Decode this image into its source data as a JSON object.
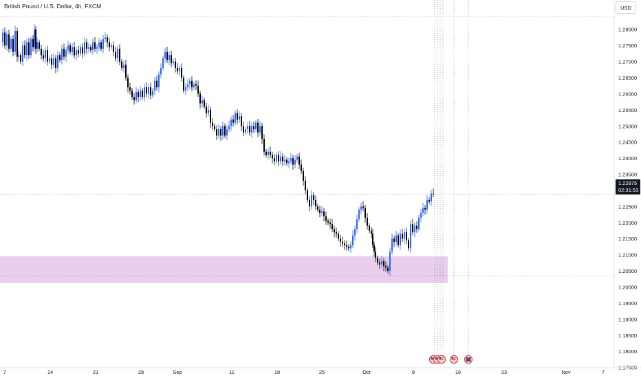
{
  "title": "British Pound / U.S. Dollar, 4h, FXCM",
  "currency": "USD",
  "last_price": {
    "value": "1.22875",
    "countdown": "02:31:53"
  },
  "chart_data": {
    "type": "candlestick",
    "y_axis": {
      "ylim": [
        1.173,
        1.284
      ],
      "ticks": [
        "1.28000",
        "1.27500",
        "1.27000",
        "1.26500",
        "1.26000",
        "1.25500",
        "1.25000",
        "1.24500",
        "1.24000",
        "1.23500",
        "1.23000",
        "1.22500",
        "1.22000",
        "1.21500",
        "1.21000",
        "1.20500",
        "1.20000",
        "1.19500",
        "1.19000",
        "1.18500",
        "1.18000",
        "1.17500"
      ],
      "side": "right"
    },
    "x_axis": {
      "ticks": [
        "7",
        "14",
        "21",
        "28",
        "Sep",
        "11",
        "18",
        "25",
        "Oct",
        "9",
        "16",
        "23",
        "Nov",
        "7"
      ]
    },
    "up_color": "#2962ff",
    "down_color": "#000000",
    "highlight_zone": {
      "from": 1.2012,
      "to": 1.2095,
      "color": "#e1bee7"
    },
    "horizontal_lines": [
      1.284,
      1.22875,
      1.2035
    ],
    "event_lines_count": 6,
    "event_icons": [
      "us-flag-icon",
      "us-flag-icon",
      "us-flag-icon",
      "us-flag-icon",
      "uk-flag-icon"
    ],
    "price_path": [
      [
        0,
        1.276
      ],
      [
        3,
        1.279
      ],
      [
        6,
        1.275
      ],
      [
        9,
        1.2785
      ],
      [
        12,
        1.274
      ],
      [
        15,
        1.277
      ],
      [
        18,
        1.273
      ],
      [
        21,
        1.2795
      ],
      [
        24,
        1.2715
      ],
      [
        26,
        1.272
      ],
      [
        29,
        1.27
      ],
      [
        32,
        1.275
      ],
      [
        35,
        1.272
      ],
      [
        38,
        1.276
      ],
      [
        41,
        1.272
      ],
      [
        44,
        1.277
      ],
      [
        47,
        1.2745
      ],
      [
        49,
        1.28
      ],
      [
        51,
        1.274
      ],
      [
        53,
        1.276
      ],
      [
        56,
        1.274
      ],
      [
        59,
        1.272
      ],
      [
        62,
        1.271
      ],
      [
        65,
        1.2735
      ],
      [
        68,
        1.27
      ],
      [
        71,
        1.271
      ],
      [
        74,
        1.269
      ],
      [
        77,
        1.271
      ],
      [
        80,
        1.268
      ],
      [
        83,
        1.272
      ],
      [
        86,
        1.2705
      ],
      [
        89,
        1.274
      ],
      [
        92,
        1.2715
      ],
      [
        95,
        1.2735
      ],
      [
        98,
        1.275
      ],
      [
        101,
        1.273
      ],
      [
        104,
        1.2745
      ],
      [
        107,
        1.272
      ],
      [
        110,
        1.2735
      ],
      [
        113,
        1.2725
      ],
      [
        116,
        1.2745
      ],
      [
        119,
        1.2725
      ],
      [
        122,
        1.276
      ],
      [
        125,
        1.274
      ],
      [
        128,
        1.2745
      ],
      [
        131,
        1.2735
      ],
      [
        134,
        1.276
      ],
      [
        137,
        1.274
      ],
      [
        140,
        1.2745
      ],
      [
        143,
        1.276
      ],
      [
        146,
        1.274
      ],
      [
        149,
        1.277
      ],
      [
        152,
        1.2775
      ],
      [
        155,
        1.276
      ],
      [
        158,
        1.2745
      ],
      [
        161,
        1.275
      ],
      [
        164,
        1.273
      ],
      [
        167,
        1.271
      ],
      [
        170,
        1.274
      ],
      [
        173,
        1.27
      ],
      [
        176,
        1.268
      ],
      [
        179,
        1.269
      ],
      [
        182,
        1.265
      ],
      [
        185,
        1.262
      ],
      [
        188,
        1.261
      ],
      [
        191,
        1.259
      ],
      [
        194,
        1.258
      ],
      [
        197,
        1.2605
      ],
      [
        200,
        1.259
      ],
      [
        203,
        1.261
      ],
      [
        206,
        1.259
      ],
      [
        209,
        1.262
      ],
      [
        212,
        1.26
      ],
      [
        215,
        1.262
      ],
      [
        218,
        1.2595
      ],
      [
        221,
        1.261
      ],
      [
        224,
        1.264
      ],
      [
        227,
        1.262
      ],
      [
        230,
        1.266
      ],
      [
        233,
        1.268
      ],
      [
        236,
        1.271
      ],
      [
        239,
        1.273
      ],
      [
        242,
        1.2705
      ],
      [
        245,
        1.272
      ],
      [
        248,
        1.2695
      ],
      [
        251,
        1.27
      ],
      [
        254,
        1.268
      ],
      [
        257,
        1.267
      ],
      [
        260,
        1.268
      ],
      [
        263,
        1.265
      ],
      [
        266,
        1.261
      ],
      [
        269,
        1.262
      ],
      [
        272,
        1.263
      ],
      [
        275,
        1.264
      ],
      [
        278,
        1.262
      ],
      [
        281,
        1.263
      ],
      [
        284,
        1.2625
      ],
      [
        287,
        1.26
      ],
      [
        290,
        1.257
      ],
      [
        293,
        1.258
      ],
      [
        296,
        1.256
      ],
      [
        299,
        1.254
      ],
      [
        302,
        1.255
      ],
      [
        305,
        1.251
      ],
      [
        308,
        1.25
      ],
      [
        311,
        1.249
      ],
      [
        314,
        1.247
      ],
      [
        317,
        1.249
      ],
      [
        320,
        1.247
      ],
      [
        323,
        1.25
      ],
      [
        326,
        1.247
      ],
      [
        329,
        1.249
      ],
      [
        332,
        1.25
      ],
      [
        335,
        1.252
      ],
      [
        338,
        1.251
      ],
      [
        341,
        1.254
      ],
      [
        344,
        1.252
      ],
      [
        347,
        1.253
      ],
      [
        350,
        1.25
      ],
      [
        353,
        1.248
      ],
      [
        356,
        1.249
      ],
      [
        359,
        1.25
      ],
      [
        362,
        1.248
      ],
      [
        365,
        1.25
      ],
      [
        368,
        1.249
      ],
      [
        371,
        1.251
      ],
      [
        374,
        1.248
      ],
      [
        377,
        1.25
      ],
      [
        380,
        1.246
      ],
      [
        383,
        1.242
      ],
      [
        386,
        1.241
      ],
      [
        389,
        1.242
      ],
      [
        392,
        1.241
      ],
      [
        395,
        1.24
      ],
      [
        398,
        1.239
      ],
      [
        401,
        1.241
      ],
      [
        404,
        1.239
      ],
      [
        407,
        1.2405
      ],
      [
        410,
        1.239
      ],
      [
        413,
        1.2395
      ],
      [
        416,
        1.2385
      ],
      [
        419,
        1.239
      ],
      [
        422,
        1.24
      ],
      [
        425,
        1.238
      ],
      [
        428,
        1.2395
      ],
      [
        431,
        1.2405
      ],
      [
        434,
        1.238
      ],
      [
        437,
        1.236
      ],
      [
        440,
        1.233
      ],
      [
        443,
        1.23
      ],
      [
        446,
        1.227
      ],
      [
        449,
        1.225
      ],
      [
        452,
        1.2285
      ],
      [
        455,
        1.227
      ],
      [
        458,
        1.225
      ],
      [
        461,
        1.224
      ],
      [
        464,
        1.223
      ],
      [
        467,
        1.2235
      ],
      [
        470,
        1.222
      ],
      [
        473,
        1.2205
      ],
      [
        476,
        1.22
      ],
      [
        479,
        1.2195
      ],
      [
        482,
        1.218
      ],
      [
        485,
        1.217
      ],
      [
        488,
        1.2165
      ],
      [
        491,
        1.215
      ],
      [
        494,
        1.214
      ],
      [
        497,
        1.2135
      ],
      [
        500,
        1.213
      ],
      [
        503,
        1.2125
      ],
      [
        506,
        1.212
      ],
      [
        509,
        1.213
      ],
      [
        512,
        1.216
      ],
      [
        515,
        1.218
      ],
      [
        518,
        1.221
      ],
      [
        521,
        1.224
      ],
      [
        524,
        1.225
      ],
      [
        527,
        1.2245
      ],
      [
        530,
        1.2215
      ],
      [
        533,
        1.219
      ],
      [
        536,
        1.2175
      ],
      [
        539,
        1.2165
      ],
      [
        541,
        1.213
      ],
      [
        543,
        1.211
      ],
      [
        545,
        1.209
      ],
      [
        548,
        1.2075
      ],
      [
        551,
        1.207
      ],
      [
        554,
        1.208
      ],
      [
        557,
        1.2065
      ],
      [
        560,
        1.206
      ],
      [
        563,
        1.205
      ],
      [
        566,
        1.211
      ],
      [
        569,
        1.215
      ],
      [
        572,
        1.214
      ],
      [
        575,
        1.216
      ],
      [
        578,
        1.213
      ],
      [
        581,
        1.2165
      ],
      [
        584,
        1.215
      ],
      [
        587,
        1.217
      ],
      [
        590,
        1.2145
      ],
      [
        593,
        1.212
      ],
      [
        596,
        1.2195
      ],
      [
        599,
        1.217
      ],
      [
        602,
        1.219
      ],
      [
        605,
        1.218
      ],
      [
        608,
        1.2215
      ],
      [
        611,
        1.223
      ],
      [
        614,
        1.2245
      ],
      [
        617,
        1.224
      ],
      [
        620,
        1.227
      ],
      [
        623,
        1.2265
      ],
      [
        626,
        1.229
      ],
      [
        629,
        1.2288
      ]
    ]
  }
}
